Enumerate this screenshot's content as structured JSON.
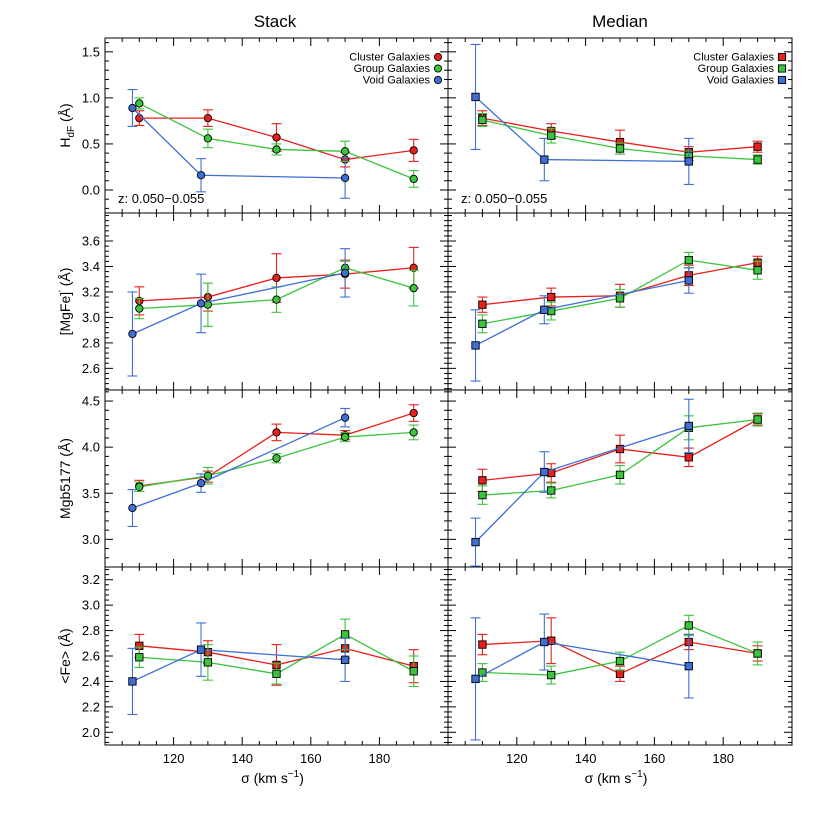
{
  "figure": {
    "columns": [
      "Stack",
      "Median"
    ],
    "xlabel": "σ (km s",
    "xlabel_sup": "−1",
    "xlabel_close": ")",
    "xticks": [
      "120",
      "140",
      "160",
      "180"
    ],
    "colors": {
      "cluster": "#e8201c",
      "group": "#3cc43c",
      "void": "#3f6fd6"
    },
    "legend": [
      "Cluster Galaxies",
      "Group Galaxies",
      "Void Galaxies"
    ],
    "redshift_label": "z: 0.050−0.055"
  },
  "chart_data": [
    {
      "type": "line",
      "panel": "HdF-stack",
      "column": "Stack",
      "marker": "circle",
      "ylabel": "H",
      "ylabel_sub": "dF",
      "ylabel_unit": " (Å)",
      "xlim": [
        100,
        200
      ],
      "ylim": [
        -0.25,
        1.65
      ],
      "yticks": [
        "0.0",
        "0.5",
        "1.0",
        "1.5"
      ],
      "series": [
        {
          "name": "Cluster Galaxies",
          "key": "cluster",
          "x": [
            110,
            130,
            150,
            170,
            190
          ],
          "y": [
            0.78,
            0.78,
            0.57,
            0.33,
            0.43
          ],
          "err": [
            0.08,
            0.09,
            0.15,
            0.08,
            0.12
          ]
        },
        {
          "name": "Group Galaxies",
          "key": "group",
          "x": [
            110,
            130,
            150,
            170,
            190
          ],
          "y": [
            0.94,
            0.56,
            0.44,
            0.42,
            0.12
          ],
          "err": [
            0.06,
            0.1,
            0.06,
            0.11,
            0.09
          ]
        },
        {
          "name": "Void Galaxies",
          "key": "void",
          "x": [
            108,
            128,
            170
          ],
          "y": [
            0.89,
            0.16,
            0.13
          ],
          "err": [
            0.2,
            0.18,
            0.22
          ]
        }
      ]
    },
    {
      "type": "line",
      "panel": "HdF-median",
      "column": "Median",
      "marker": "square",
      "xlim": [
        100,
        200
      ],
      "ylim": [
        -0.25,
        1.65
      ],
      "series": [
        {
          "name": "Cluster Galaxies",
          "key": "cluster",
          "x": [
            110,
            130,
            150,
            170,
            190
          ],
          "y": [
            0.78,
            0.64,
            0.52,
            0.41,
            0.47
          ],
          "err": [
            0.08,
            0.08,
            0.13,
            0.06,
            0.06
          ]
        },
        {
          "name": "Group Galaxies",
          "key": "group",
          "x": [
            110,
            130,
            150,
            170,
            190
          ],
          "y": [
            0.76,
            0.59,
            0.45,
            0.37,
            0.33
          ],
          "err": [
            0.07,
            0.08,
            0.06,
            0.05,
            0.05
          ]
        },
        {
          "name": "Void Galaxies",
          "key": "void",
          "x": [
            108,
            128,
            170
          ],
          "y": [
            1.01,
            0.33,
            0.31
          ],
          "err": [
            0.57,
            0.23,
            0.25
          ]
        }
      ]
    },
    {
      "type": "line",
      "panel": "MgFe-stack",
      "column": "Stack",
      "marker": "circle",
      "ylabel": "[MgFe]",
      "ylabel_sup": "'",
      "ylabel_unit": " (Å)",
      "xlim": [
        100,
        200
      ],
      "ylim": [
        2.43,
        3.82
      ],
      "yticks": [
        "2.6",
        "2.8",
        "3.0",
        "3.2",
        "3.4",
        "3.6"
      ],
      "series": [
        {
          "name": "Cluster Galaxies",
          "key": "cluster",
          "x": [
            110,
            130,
            150,
            170,
            190
          ],
          "y": [
            3.13,
            3.16,
            3.31,
            3.34,
            3.39
          ],
          "err": [
            0.11,
            0.11,
            0.19,
            0.11,
            0.16
          ]
        },
        {
          "name": "Group Galaxies",
          "key": "group",
          "x": [
            110,
            130,
            150,
            170,
            190
          ],
          "y": [
            3.07,
            3.1,
            3.14,
            3.39,
            3.23
          ],
          "err": [
            0.08,
            0.17,
            0.1,
            0.05,
            0.14
          ]
        },
        {
          "name": "Void Galaxies",
          "key": "void",
          "x": [
            108,
            128,
            170
          ],
          "y": [
            2.87,
            3.11,
            3.35
          ],
          "err": [
            0.33,
            0.23,
            0.19
          ]
        }
      ]
    },
    {
      "type": "line",
      "panel": "MgFe-median",
      "column": "Median",
      "marker": "square",
      "xlim": [
        100,
        200
      ],
      "ylim": [
        2.43,
        3.82
      ],
      "series": [
        {
          "name": "Cluster Galaxies",
          "key": "cluster",
          "x": [
            110,
            130,
            150,
            170,
            190
          ],
          "y": [
            3.1,
            3.16,
            3.17,
            3.33,
            3.43
          ],
          "err": [
            0.06,
            0.07,
            0.09,
            0.08,
            0.05
          ]
        },
        {
          "name": "Group Galaxies",
          "key": "group",
          "x": [
            110,
            130,
            150,
            170,
            190
          ],
          "y": [
            2.95,
            3.05,
            3.15,
            3.45,
            3.37
          ],
          "err": [
            0.07,
            0.07,
            0.07,
            0.06,
            0.07
          ]
        },
        {
          "name": "Void Galaxies",
          "key": "void",
          "x": [
            108,
            128,
            170
          ],
          "y": [
            2.78,
            3.06,
            3.29
          ],
          "err": [
            0.28,
            0.11,
            0.1
          ]
        }
      ]
    },
    {
      "type": "line",
      "panel": "Mgb-stack",
      "column": "Stack",
      "marker": "circle",
      "ylabel": "Mgb5177",
      "ylabel_unit": " (Å)",
      "xlim": [
        100,
        200
      ],
      "ylim": [
        2.7,
        4.62
      ],
      "yticks": [
        "3.0",
        "3.5",
        "4.0",
        "4.5"
      ],
      "series": [
        {
          "name": "Cluster Galaxies",
          "key": "cluster",
          "x": [
            110,
            130,
            150,
            170,
            190
          ],
          "y": [
            3.58,
            3.68,
            4.16,
            4.13,
            4.37
          ],
          "err": [
            0.06,
            0.06,
            0.09,
            0.05,
            0.09
          ]
        },
        {
          "name": "Group Galaxies",
          "key": "group",
          "x": [
            110,
            130,
            150,
            170,
            190
          ],
          "y": [
            3.57,
            3.69,
            3.88,
            4.11,
            4.16
          ],
          "err": [
            0.05,
            0.09,
            0.05,
            0.05,
            0.08
          ]
        },
        {
          "name": "Void Galaxies",
          "key": "void",
          "x": [
            108,
            128,
            170
          ],
          "y": [
            3.34,
            3.61,
            4.32
          ],
          "err": [
            0.2,
            0.1,
            0.1
          ]
        }
      ]
    },
    {
      "type": "line",
      "panel": "Mgb-median",
      "column": "Median",
      "marker": "square",
      "xlim": [
        100,
        200
      ],
      "ylim": [
        2.7,
        4.62
      ],
      "series": [
        {
          "name": "Cluster Galaxies",
          "key": "cluster",
          "x": [
            110,
            130,
            150,
            170,
            190
          ],
          "y": [
            3.64,
            3.72,
            3.98,
            3.89,
            4.3
          ],
          "err": [
            0.12,
            0.1,
            0.15,
            0.1,
            0.06
          ]
        },
        {
          "name": "Group Galaxies",
          "key": "group",
          "x": [
            110,
            130,
            150,
            170,
            190
          ],
          "y": [
            3.48,
            3.53,
            3.7,
            4.21,
            4.3
          ],
          "err": [
            0.1,
            0.08,
            0.1,
            0.13,
            0.07
          ]
        },
        {
          "name": "Void Galaxies",
          "key": "void",
          "x": [
            108,
            128,
            170
          ],
          "y": [
            2.97,
            3.73,
            4.23
          ],
          "err": [
            0.26,
            0.22,
            0.29
          ]
        }
      ]
    },
    {
      "type": "line",
      "panel": "Fe-stack",
      "column": "Stack",
      "marker": "square",
      "ylabel": "<Fe>",
      "ylabel_unit": " (Å)",
      "xlim": [
        100,
        200
      ],
      "ylim": [
        1.9,
        3.3
      ],
      "yticks": [
        "2.0",
        "2.2",
        "2.4",
        "2.6",
        "2.8",
        "3.0",
        "3.2"
      ],
      "series": [
        {
          "name": "Cluster Galaxies",
          "key": "cluster",
          "x": [
            110,
            130,
            150,
            170,
            190
          ],
          "y": [
            2.68,
            2.63,
            2.53,
            2.66,
            2.52
          ],
          "err": [
            0.09,
            0.09,
            0.16,
            0.08,
            0.13
          ]
        },
        {
          "name": "Group Galaxies",
          "key": "group",
          "x": [
            110,
            130,
            150,
            170,
            190
          ],
          "y": [
            2.59,
            2.55,
            2.46,
            2.77,
            2.48
          ],
          "err": [
            0.08,
            0.14,
            0.08,
            0.12,
            0.12
          ]
        },
        {
          "name": "Void Galaxies",
          "key": "void",
          "x": [
            108,
            128,
            170
          ],
          "y": [
            2.4,
            2.65,
            2.57
          ],
          "err": [
            0.26,
            0.21,
            0.17
          ]
        }
      ]
    },
    {
      "type": "line",
      "panel": "Fe-median",
      "column": "Median",
      "marker": "square",
      "xlim": [
        100,
        200
      ],
      "ylim": [
        1.9,
        3.3
      ],
      "series": [
        {
          "name": "Cluster Galaxies",
          "key": "cluster",
          "x": [
            110,
            130,
            150,
            170,
            190
          ],
          "y": [
            2.69,
            2.72,
            2.46,
            2.71,
            2.62
          ],
          "err": [
            0.08,
            0.18,
            0.06,
            0.06,
            0.06
          ]
        },
        {
          "name": "Group Galaxies",
          "key": "group",
          "x": [
            110,
            130,
            150,
            170,
            190
          ],
          "y": [
            2.47,
            2.45,
            2.56,
            2.84,
            2.62
          ],
          "err": [
            0.07,
            0.07,
            0.07,
            0.08,
            0.09
          ]
        },
        {
          "name": "Void Galaxies",
          "key": "void",
          "x": [
            108,
            128,
            170
          ],
          "y": [
            2.42,
            2.71,
            2.52
          ],
          "err": [
            0.48,
            0.22,
            0.25
          ]
        }
      ]
    }
  ]
}
